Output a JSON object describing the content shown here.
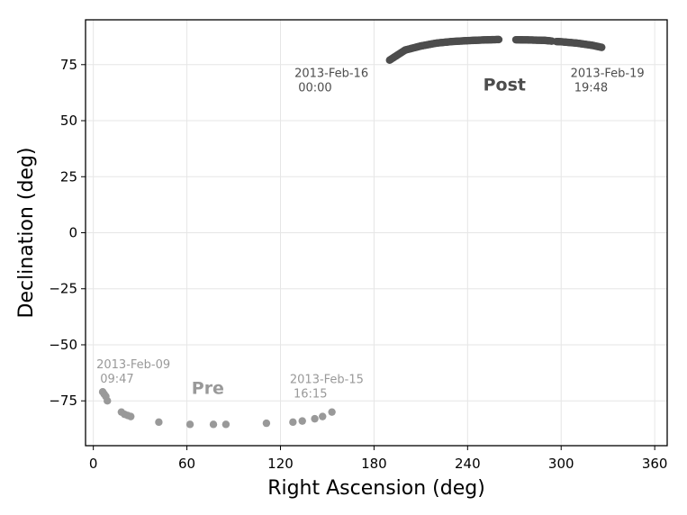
{
  "chart_data": {
    "type": "scatter",
    "xlabel": "Right Ascension (deg)",
    "ylabel": "Declination (deg)",
    "xlim": [
      -5,
      368
    ],
    "ylim": [
      -95,
      95
    ],
    "xticks": [
      0,
      60,
      120,
      180,
      240,
      300,
      360
    ],
    "yticks": [
      -75,
      -50,
      -25,
      0,
      25,
      50,
      75
    ],
    "grid": true,
    "colors": {
      "pre": "#999999",
      "post": "#4d4d4d"
    },
    "series": [
      {
        "label": "Pre",
        "points": [
          [
            6,
            -71
          ],
          [
            7,
            -72
          ],
          [
            8,
            -73
          ],
          [
            9,
            -75
          ],
          [
            18,
            -80
          ],
          [
            20,
            -81
          ],
          [
            22,
            -81.5
          ],
          [
            24,
            -82
          ],
          [
            42,
            -84.5
          ],
          [
            62,
            -85.5
          ],
          [
            77,
            -85.5
          ],
          [
            85,
            -85.5
          ],
          [
            111,
            -85
          ],
          [
            128,
            -84.5
          ],
          [
            134,
            -84
          ],
          [
            142,
            -83
          ],
          [
            147,
            -82
          ],
          [
            153,
            -80
          ]
        ]
      },
      {
        "label": "Post",
        "points_generated": {
          "segments": [
            {
              "ra": [
                190,
                200,
                210,
                220,
                230,
                240,
                250,
                260
              ],
              "dec": [
                77,
                81.5,
                83.3,
                84.6,
                85.3,
                85.7,
                86,
                86.2
              ],
              "step": 0.6
            },
            {
              "ra": [
                271,
                280,
                290,
                294
              ],
              "dec": [
                86.1,
                86,
                85.8,
                85.5
              ],
              "step": 0.6
            },
            {
              "ra": [
                297,
                300,
                310,
                320,
                326
              ],
              "dec": [
                85.3,
                85.2,
                84.6,
                83.6,
                82.7
              ],
              "step": 0.6
            }
          ]
        }
      }
    ],
    "annotations": [
      {
        "id": "feb09",
        "lines": [
          "2013-Feb-09",
          " 09:47"
        ],
        "ra": 2,
        "dec": -60.5,
        "group": "pre"
      },
      {
        "id": "feb15",
        "lines": [
          "2013-Feb-15",
          " 16:15"
        ],
        "ra": 126,
        "dec": -67,
        "group": "pre"
      },
      {
        "id": "feb16",
        "lines": [
          "2013-Feb-16",
          " 00:00"
        ],
        "ra": 129,
        "dec": 69.5,
        "group": "post"
      },
      {
        "id": "feb19",
        "lines": [
          "2013-Feb-19",
          " 19:48"
        ],
        "ra": 306,
        "dec": 69.5,
        "group": "post"
      }
    ],
    "group_labels": [
      {
        "id": "pre",
        "text": "Pre",
        "ra": 63,
        "dec": -72,
        "group": "pre"
      },
      {
        "id": "post",
        "text": "Post",
        "ra": 250,
        "dec": 63.5,
        "group": "post"
      }
    ]
  }
}
